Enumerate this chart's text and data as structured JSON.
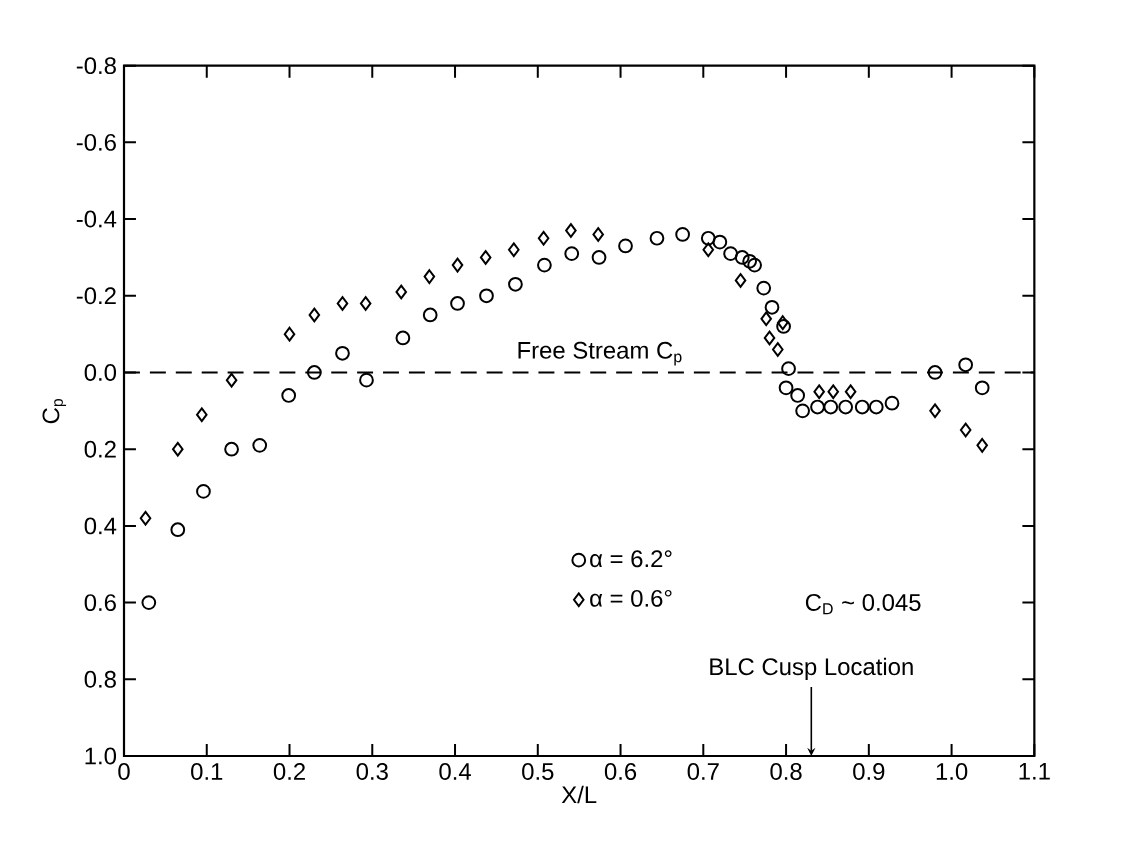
{
  "chart_data": {
    "type": "scatter",
    "xlabel": "X/L",
    "ylabel": "C$_{p}$",
    "xlim": [
      0,
      1.1
    ],
    "ylim": [
      1.0,
      -0.8
    ],
    "xticks": [
      0,
      0.1,
      0.2,
      0.3,
      0.4,
      0.5,
      0.6,
      0.7,
      0.8,
      0.9,
      {
        "value": 1,
        "label": "1.0"
      },
      1.1
    ],
    "yticks": [
      -0.8,
      -0.6,
      -0.4,
      -0.2,
      {
        "value": 0,
        "label": "0.0"
      },
      0.2,
      0.4,
      0.6,
      0.8,
      {
        "value": 1,
        "label": "1.0"
      }
    ],
    "grid": false,
    "legend": "bottom",
    "ref_lines": [
      {
        "axis": "y",
        "value": 0,
        "label": "Free Stream C$_{p}$",
        "line_style": "dashed"
      }
    ],
    "annotations": [
      "C$_{D}$ ~ 0.045",
      "BLC Cusp Location"
    ],
    "series": [
      {
        "name": "α = 6.2°",
        "color": "#000000",
        "marker": "circle",
        "x": [
          0.03,
          0.065,
          0.096,
          0.13,
          0.164,
          0.199,
          0.23,
          0.264,
          0.293,
          0.337,
          0.37,
          0.403,
          0.438,
          0.473,
          0.508,
          0.541,
          0.574,
          0.606,
          0.644,
          0.675,
          0.706,
          0.72,
          0.733,
          0.747,
          0.756,
          0.762,
          0.773,
          0.783,
          0.797,
          0.803,
          0.8,
          0.814,
          0.82,
          0.838,
          0.854,
          0.872,
          0.892,
          0.909,
          0.928,
          0.98,
          1.017,
          1.037
        ],
        "values": [
          0.6,
          0.41,
          0.31,
          0.2,
          0.19,
          0.06,
          0.0,
          -0.05,
          0.02,
          -0.09,
          -0.15,
          -0.18,
          -0.2,
          -0.23,
          -0.28,
          -0.31,
          -0.3,
          -0.33,
          -0.35,
          -0.36,
          -0.35,
          -0.34,
          -0.31,
          -0.3,
          -0.29,
          -0.28,
          -0.22,
          -0.17,
          -0.12,
          -0.01,
          0.04,
          0.06,
          0.1,
          0.09,
          0.09,
          0.09,
          0.09,
          0.09,
          0.08,
          0.0,
          -0.02,
          0.04
        ]
      },
      {
        "name": "α = 0.6°",
        "color": "#000000",
        "marker": "diamond",
        "x": [
          0.026,
          0.065,
          0.094,
          0.13,
          0.2,
          0.23,
          0.264,
          0.292,
          0.335,
          0.369,
          0.403,
          0.437,
          0.471,
          0.507,
          0.54,
          0.573,
          0.706,
          0.745,
          0.776,
          0.796,
          0.78,
          0.79,
          0.84,
          0.857,
          0.878,
          0.98,
          1.017,
          1.037
        ],
        "values": [
          0.38,
          0.2,
          0.11,
          0.02,
          -0.1,
          -0.15,
          -0.18,
          -0.18,
          -0.21,
          -0.25,
          -0.28,
          -0.3,
          -0.32,
          -0.35,
          -0.37,
          -0.36,
          -0.32,
          -0.24,
          -0.14,
          -0.13,
          -0.09,
          -0.06,
          0.05,
          0.05,
          0.05,
          0.1,
          0.15,
          0.19
        ]
      }
    ]
  }
}
